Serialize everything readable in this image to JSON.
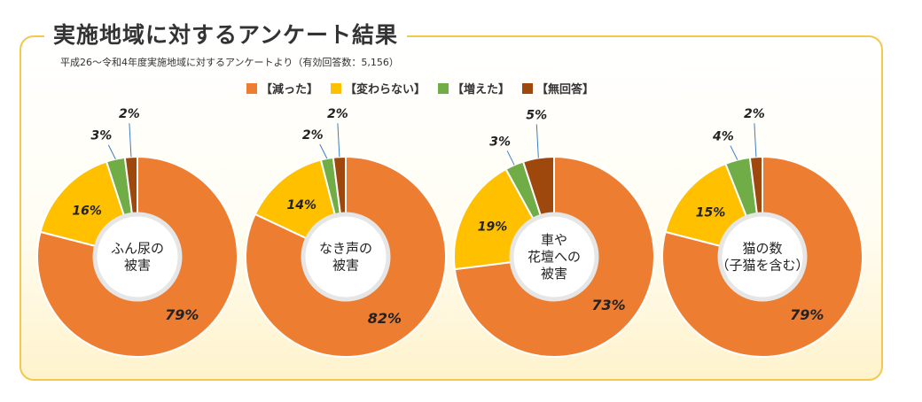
{
  "title": "実施地域に対するアンケート結果",
  "subtitle": "平成26～令和4年度実施地域に対するアンケートより（有効回答数：5,156）",
  "legend": [
    {
      "label": "【減った】",
      "color": "#ed7d31"
    },
    {
      "label": "【変わらない】",
      "color": "#ffc000"
    },
    {
      "label": "【増えた】",
      "color": "#70ad47"
    },
    {
      "label": "【無回答】",
      "color": "#9e480e"
    }
  ],
  "chart_data": [
    {
      "type": "pie",
      "center_label": [
        "ふん尿の",
        "被害"
      ],
      "categories": [
        "減った",
        "変わらない",
        "増えた",
        "無回答"
      ],
      "values": [
        79,
        16,
        3,
        2
      ],
      "labels": [
        "79%",
        "16%",
        "3%",
        "2%"
      ]
    },
    {
      "type": "pie",
      "center_label": [
        "なき声の",
        "被害"
      ],
      "categories": [
        "減った",
        "変わらない",
        "増えた",
        "無回答"
      ],
      "values": [
        82,
        14,
        2,
        2
      ],
      "labels": [
        "82%",
        "14%",
        "2%",
        "2%"
      ]
    },
    {
      "type": "pie",
      "center_label": [
        "車や",
        "花壇への",
        "被害"
      ],
      "categories": [
        "減った",
        "変わらない",
        "増えた",
        "無回答"
      ],
      "values": [
        73,
        19,
        3,
        5
      ],
      "labels": [
        "73%",
        "19%",
        "3%",
        "5%"
      ]
    },
    {
      "type": "pie",
      "center_label": [
        "猫の数",
        "（子猫を含む）"
      ],
      "categories": [
        "減った",
        "変わらない",
        "増えた",
        "無回答"
      ],
      "values": [
        79,
        15,
        4,
        2
      ],
      "labels": [
        "79%",
        "15%",
        "4%",
        "2%"
      ]
    }
  ]
}
